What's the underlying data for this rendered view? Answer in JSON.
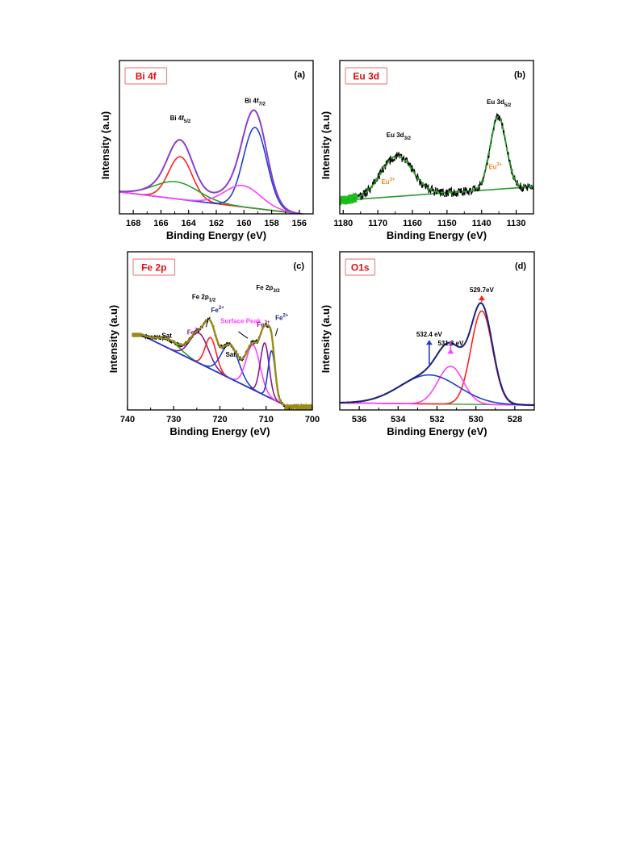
{
  "chart_data": [
    {
      "panel": "a",
      "type": "line",
      "badge": "Bi 4f",
      "letter": "(a)",
      "xlabel": "Binding Energy (eV)",
      "ylabel": "Intensity (a.u)",
      "xlim": [
        169,
        155
      ],
      "x_ticks": [
        168,
        166,
        164,
        162,
        160,
        158,
        156
      ],
      "ylim": [
        0,
        1.0
      ],
      "x_reversed": true,
      "annotations": [
        {
          "text": "Bi 4f",
          "sub": "5/2",
          "x": 164.6,
          "y": 0.82,
          "color": "#000000"
        },
        {
          "text": "Bi 4f",
          "sub": "7/2",
          "x": 159.2,
          "y": 0.98,
          "color": "#000000"
        }
      ],
      "baseline": {
        "x": [
          169,
          155
        ],
        "y": [
          0.16,
          -0.06
        ],
        "color": "#1a237e"
      },
      "peaks": [
        {
          "center": 164.6,
          "amp": 0.4,
          "width": 0.85,
          "color": "#ff2020"
        },
        {
          "center": 164.9,
          "amp": 0.16,
          "width": 1.6,
          "color": "#2ca02c"
        },
        {
          "center": 159.2,
          "amp": 0.76,
          "width": 0.85,
          "color": "#1f3fd0"
        },
        {
          "center": 160.1,
          "amp": 0.2,
          "width": 1.3,
          "color": "#ff40ff"
        }
      ],
      "envelope_color": "#8b3fd0"
    },
    {
      "panel": "b",
      "type": "line",
      "badge": "Eu 3d",
      "letter": "(b)",
      "xlabel": "Binding Energy (eV)",
      "ylabel": "Intensity (a.u)",
      "xlim": [
        1181,
        1125
      ],
      "x_ticks": [
        1180,
        1170,
        1160,
        1150,
        1140,
        1130
      ],
      "ylim": [
        0,
        1.0
      ],
      "x_reversed": true,
      "annotations": [
        {
          "text": "Eu 3d",
          "sub": "3/2",
          "x": 1164,
          "y": 0.66,
          "color": "#000000"
        },
        {
          "text": "Eu 3d",
          "sub": "5/2",
          "x": 1135,
          "y": 0.97,
          "color": "#000000"
        },
        {
          "text": "Eu",
          "sup": "3+",
          "x": 1167,
          "y": 0.22,
          "color": "#f08a24"
        },
        {
          "text": "Eu",
          "sup": "3+",
          "x": 1136,
          "y": 0.36,
          "color": "#f08a24"
        }
      ],
      "baseline": {
        "x": [
          1181,
          1125
        ],
        "y": [
          0.08,
          0.21
        ],
        "color": "#ff40ff"
      },
      "peaks": [
        {
          "center": 1164.5,
          "amp": 0.38,
          "width": 4.6,
          "color": "#2ca02c"
        },
        {
          "center": 1135.2,
          "amp": 0.68,
          "width": 2.3,
          "color": "#2ca02c"
        }
      ],
      "envelope_color": "#2ca02c",
      "raw_color": "#000000",
      "noise": 0.045
    },
    {
      "panel": "c",
      "type": "line",
      "badge": "Fe 2p",
      "letter": "(c)",
      "xlabel": "Binding Energy (eV)",
      "ylabel": "Intensity (a.u)",
      "xlim": [
        740,
        700
      ],
      "x_ticks": [
        740,
        730,
        720,
        710,
        700
      ],
      "ylim": [
        0,
        1.0
      ],
      "x_reversed": true,
      "annotations": [
        {
          "text": "Fe 2p",
          "sub": "1/2",
          "x": 723.5,
          "y": 0.94,
          "color": "#000000"
        },
        {
          "text": "Fe 2p",
          "sub": "3/2",
          "x": 709.6,
          "y": 1.02,
          "color": "#000000"
        },
        {
          "text": "Fe",
          "sup": "2+",
          "x": 720.5,
          "y": 0.82,
          "color": "#1a237e"
        },
        {
          "text": "Sat",
          "x": 731.5,
          "y": 0.59,
          "color": "#000000"
        },
        {
          "text": "Fe",
          "sup": "3+",
          "x": 725.7,
          "y": 0.62,
          "color": "#8b1a8b"
        },
        {
          "text": "Surface Peak",
          "x": 715.5,
          "y": 0.72,
          "color": "#ff40ff"
        },
        {
          "text": "Sat",
          "x": 717.7,
          "y": 0.42,
          "color": "#000000"
        },
        {
          "text": "Fe",
          "sup": "3+",
          "x": 710.6,
          "y": 0.69,
          "color": "#8b1a8b"
        },
        {
          "text": "Fe",
          "sup": "2+",
          "x": 706.6,
          "y": 0.75,
          "color": "#1a237e"
        }
      ],
      "baseline": {
        "x": [
          737,
          706
        ],
        "y": [
          0.63,
          0.0
        ],
        "color": "#8b1a1a"
      },
      "peaks": [
        {
          "center": 731.0,
          "amp": 0.08,
          "width": 2.4,
          "color": "#2ca02c"
        },
        {
          "center": 724.5,
          "amp": 0.27,
          "width": 2.0,
          "color": "#8b1a8b"
        },
        {
          "center": 722.0,
          "amp": 0.28,
          "width": 1.2,
          "color": "#ff2020"
        },
        {
          "center": 717.8,
          "amp": 0.3,
          "width": 1.9,
          "color": "#1f3fd0"
        },
        {
          "center": 712.8,
          "amp": 0.4,
          "width": 1.5,
          "color": "#ff40ff"
        },
        {
          "center": 710.3,
          "amp": 0.47,
          "width": 0.95,
          "color": "#8b1a8b"
        },
        {
          "center": 708.8,
          "amp": 0.43,
          "width": 0.75,
          "color": "#1f3fd0"
        }
      ],
      "envelope_color": "#9a8c1a",
      "raw_color": "#000000",
      "noise": 0.02
    },
    {
      "panel": "d",
      "type": "line",
      "badge": "O1s",
      "letter": "(d)",
      "xlabel": "Binding Energy (eV)",
      "ylabel": "Intensity (a.u)",
      "xlim": [
        537,
        527
      ],
      "x_ticks": [
        536,
        534,
        532,
        530,
        528
      ],
      "ylim": [
        0,
        1.0
      ],
      "x_reversed": true,
      "annotations": [
        {
          "text": "529.7eV",
          "x": 529.7,
          "y": 1.0,
          "color": "#000000",
          "arrow_color": "#ff2020"
        },
        {
          "text": "532.4 eV",
          "x": 532.4,
          "y": 0.6,
          "color": "#000000",
          "arrow_color": "#1f3fd0"
        },
        {
          "text": "531.3 eV",
          "x": 531.3,
          "y": 0.52,
          "color": "#000000",
          "arrow_color": "#ff40ff"
        }
      ],
      "baseline": {
        "x": [
          537,
          527
        ],
        "y": [
          0.02,
          0.0
        ],
        "color": "#2ca02c"
      },
      "peaks": [
        {
          "center": 529.7,
          "amp": 0.84,
          "width": 0.55,
          "color": "#ff2020"
        },
        {
          "center": 531.3,
          "amp": 0.34,
          "width": 0.65,
          "color": "#ff40ff"
        },
        {
          "center": 532.4,
          "amp": 0.26,
          "width": 1.5,
          "color": "#1f3fd0"
        }
      ],
      "envelope_color": "#1a237e",
      "raw_color": "#000000",
      "noise": 0.004
    }
  ]
}
